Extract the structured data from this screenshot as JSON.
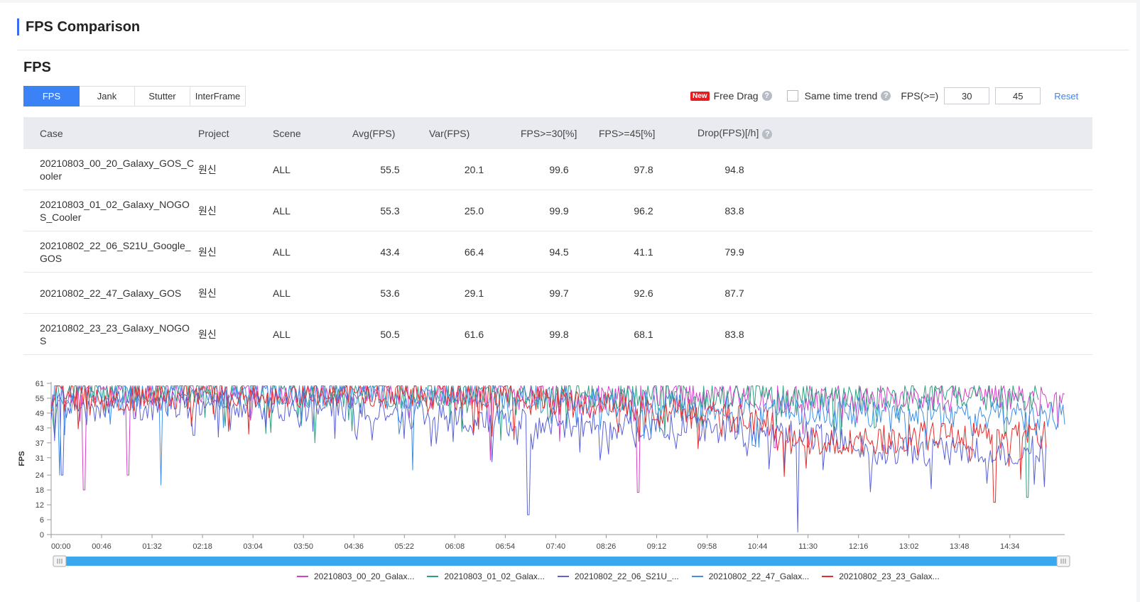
{
  "page_title": "FPS Comparison",
  "section_title": "FPS",
  "tabs": [
    "FPS",
    "Jank",
    "Stutter",
    "InterFrame"
  ],
  "active_tab": "FPS",
  "tools": {
    "new_badge": "New",
    "free_drag": "Free Drag",
    "same_time": "Same time trend",
    "fps_label": "FPS(>=)",
    "threshold1": "30",
    "threshold2": "45",
    "reset": "Reset",
    "help_glyph": "?"
  },
  "table": {
    "headers": [
      "Case",
      "Project",
      "Scene",
      "Avg(FPS)",
      "Var(FPS)",
      "FPS>=30[%]",
      "FPS>=45[%]",
      "Drop(FPS)[/h]"
    ],
    "rows": [
      [
        "20210803_00_20_Galaxy_GOS_Cooler",
        "원신",
        "ALL",
        "55.5",
        "20.1",
        "99.6",
        "97.8",
        "94.8"
      ],
      [
        "20210803_01_02_Galaxy_NOGOS_Cooler",
        "원신",
        "ALL",
        "55.3",
        "25.0",
        "99.9",
        "96.2",
        "83.8"
      ],
      [
        "20210802_22_06_S21U_Google_GOS",
        "원신",
        "ALL",
        "43.4",
        "66.4",
        "94.5",
        "41.1",
        "79.9"
      ],
      [
        "20210802_22_47_Galaxy_GOS",
        "원신",
        "ALL",
        "53.6",
        "29.1",
        "99.7",
        "92.6",
        "87.7"
      ],
      [
        "20210802_23_23_Galaxy_NOGOS",
        "원신",
        "ALL",
        "50.5",
        "61.6",
        "99.8",
        "68.1",
        "83.8"
      ]
    ]
  },
  "chart_data": {
    "type": "line",
    "ylabel": "FPS",
    "yticks": [
      0,
      6,
      12,
      18,
      24,
      31,
      37,
      43,
      49,
      55,
      61
    ],
    "ylim": [
      0,
      61
    ],
    "xticks": [
      "00:00",
      "00:46",
      "01:32",
      "02:18",
      "03:04",
      "03:50",
      "04:36",
      "05:22",
      "06:08",
      "06:54",
      "07:40",
      "08:26",
      "09:12",
      "09:58",
      "10:44",
      "11:30",
      "12:16",
      "13:02",
      "13:48",
      "14:34"
    ],
    "x_range_minutes": [
      0,
      924
    ],
    "sample_count": 600,
    "series": [
      {
        "name": "20210803_00_20_Galax...",
        "color": "#d63fc8",
        "end_minute": 924,
        "trend": [
          [
            0,
            57
          ],
          [
            100,
            58
          ],
          [
            300,
            57
          ],
          [
            600,
            55
          ],
          [
            924,
            55
          ]
        ],
        "dips": [
          [
            30,
            18
          ],
          [
            70,
            24
          ],
          [
            400,
            38
          ],
          [
            400,
            30
          ],
          [
            535,
            17
          ],
          [
            660,
            35
          ],
          [
            900,
            48
          ]
        ]
      },
      {
        "name": "20210803_01_02_Galax...",
        "color": "#2f9f82",
        "end_minute": 900,
        "trend": [
          [
            0,
            58
          ],
          [
            100,
            58
          ],
          [
            300,
            57
          ],
          [
            600,
            56
          ],
          [
            900,
            55
          ]
        ],
        "dips": [
          [
            240,
            37
          ],
          [
            410,
            38
          ],
          [
            560,
            40
          ],
          [
            720,
            37
          ],
          [
            870,
            40
          ],
          [
            890,
            15
          ]
        ]
      },
      {
        "name": "20210802_22_06_S21U_...",
        "color": "#5b63d6",
        "end_minute": 907,
        "trend": [
          [
            0,
            52
          ],
          [
            60,
            52
          ],
          [
            200,
            52
          ],
          [
            300,
            50
          ],
          [
            400,
            45
          ],
          [
            500,
            44
          ],
          [
            650,
            42
          ],
          [
            690,
            40
          ],
          [
            750,
            34
          ],
          [
            850,
            33
          ],
          [
            907,
            34
          ]
        ],
        "dips": [
          [
            10,
            24
          ],
          [
            130,
            40
          ],
          [
            440,
            40
          ],
          [
            500,
            30
          ],
          [
            435,
            8
          ],
          [
            681,
            1
          ],
          [
            790,
            30
          ],
          [
            870,
            28
          ]
        ]
      },
      {
        "name": "20210802_22_47_Galax...",
        "color": "#3f8fe8",
        "end_minute": 924,
        "trend": [
          [
            0,
            55
          ],
          [
            200,
            57
          ],
          [
            400,
            56
          ],
          [
            600,
            51
          ],
          [
            900,
            48
          ]
        ],
        "dips": [
          [
            8,
            24
          ],
          [
            100,
            20
          ],
          [
            330,
            26
          ],
          [
            640,
            36
          ],
          [
            840,
            40
          ]
        ]
      },
      {
        "name": "20210802_23_23_Galax...",
        "color": "#e52d2d",
        "end_minute": 907,
        "trend": [
          [
            0,
            55
          ],
          [
            200,
            57
          ],
          [
            400,
            56
          ],
          [
            550,
            50
          ],
          [
            650,
            46
          ],
          [
            700,
            36
          ],
          [
            800,
            40
          ],
          [
            907,
            40
          ]
        ],
        "dips": [
          [
            860,
            13
          ],
          [
            780,
            34
          ]
        ]
      }
    ]
  }
}
